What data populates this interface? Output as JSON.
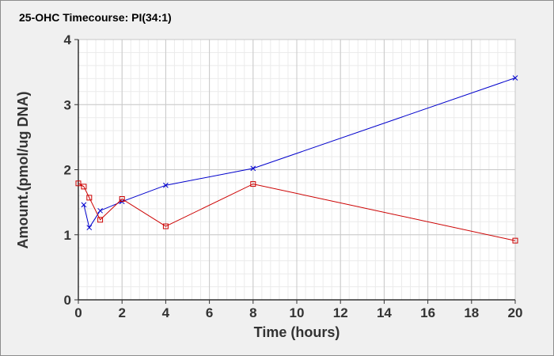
{
  "chart_data": {
    "type": "line",
    "title": "25-OHC Timecourse: PI(34:1)",
    "xlabel": "Time (hours)",
    "ylabel": "Amount.(pmol/ug DNA)",
    "xlim": [
      0,
      20
    ],
    "ylim": [
      0,
      4
    ],
    "xticks": [
      0,
      2,
      4,
      6,
      8,
      10,
      12,
      14,
      16,
      18,
      20
    ],
    "yticks": [
      0,
      1,
      2,
      3,
      4
    ],
    "grid": true,
    "series": [
      {
        "color": "#0000cc",
        "marker": "x",
        "x": [
          0.25,
          0.5,
          1,
          2,
          4,
          8,
          20
        ],
        "y": [
          1.46,
          1.11,
          1.37,
          1.51,
          1.76,
          2.02,
          3.41
        ]
      },
      {
        "color": "#cc0000",
        "marker": "square",
        "x": [
          0,
          0.25,
          0.5,
          1,
          2,
          4,
          8,
          20
        ],
        "y": [
          1.79,
          1.74,
          1.57,
          1.23,
          1.55,
          1.13,
          1.78,
          0.91
        ]
      }
    ]
  }
}
